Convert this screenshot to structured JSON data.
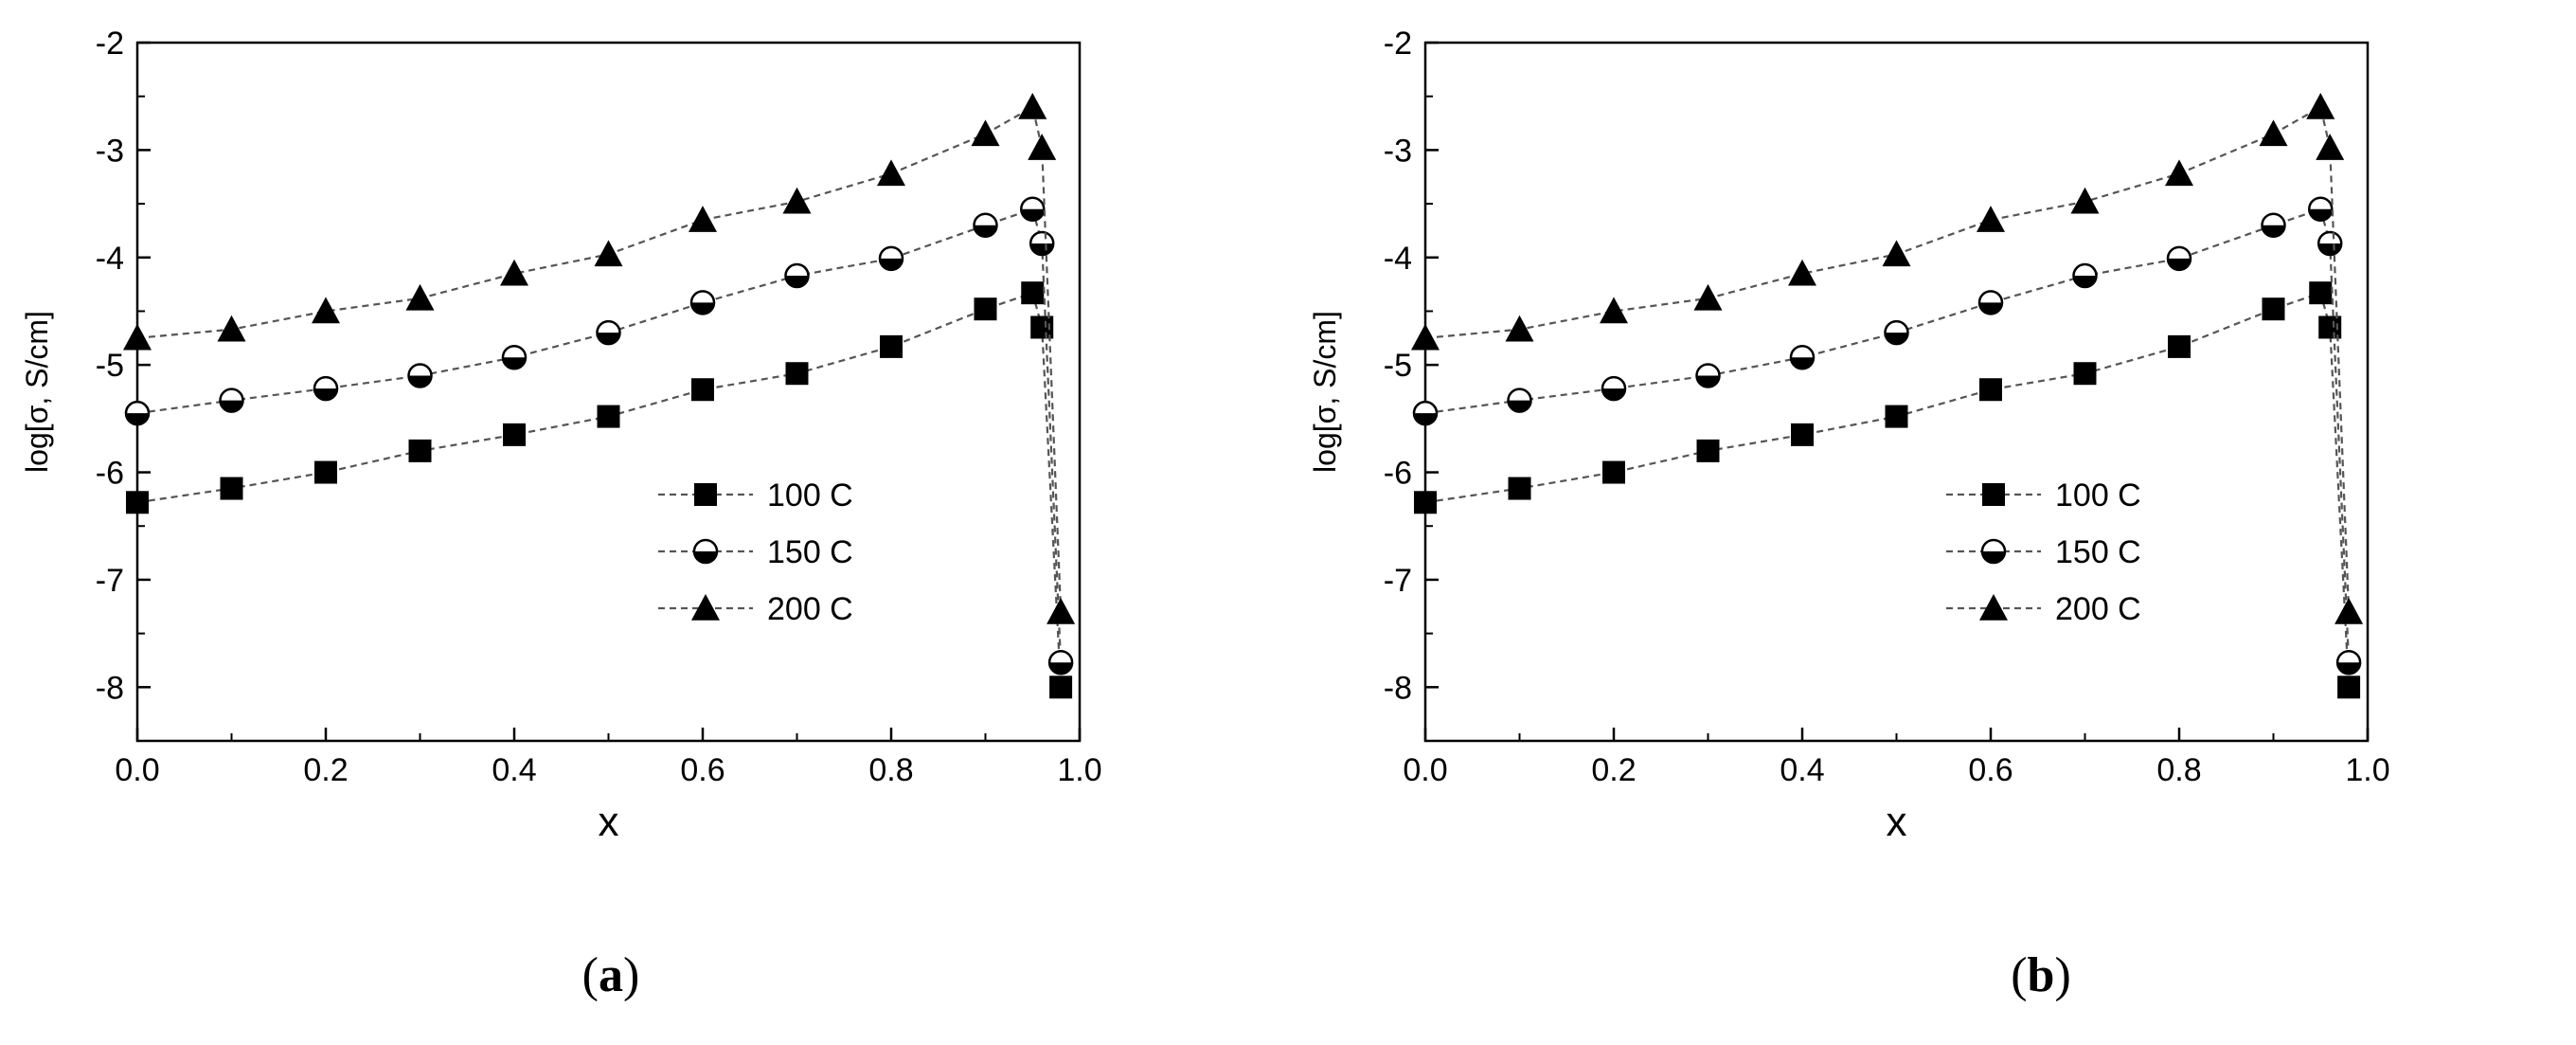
{
  "figure": {
    "captions": [
      "a",
      "b"
    ]
  },
  "chart_data": [
    {
      "panel": "a",
      "type": "line",
      "title": "",
      "xlabel": "x",
      "ylabel": "log[σ, S/cm]",
      "xlim": [
        0.0,
        1.0
      ],
      "ylim": [
        -8.5,
        -2.0
      ],
      "xticks": [
        "0.0",
        "0.2",
        "0.4",
        "0.6",
        "0.8",
        "1.0"
      ],
      "yticks": [
        "-2",
        "-3",
        "-4",
        "-5",
        "-6",
        "-7",
        "-8"
      ],
      "grid": false,
      "legend_position": "center-right",
      "x": [
        0.0,
        0.1,
        0.2,
        0.3,
        0.4,
        0.5,
        0.6,
        0.7,
        0.8,
        0.9,
        0.95,
        0.96,
        0.98
      ],
      "series": [
        {
          "name": "100 C",
          "marker": "square",
          "values": [
            -6.28,
            -6.15,
            -6.0,
            -5.8,
            -5.65,
            -5.48,
            -5.23,
            -5.08,
            -4.83,
            -4.48,
            -4.33,
            -4.65,
            -8.0
          ]
        },
        {
          "name": "150 C",
          "marker": "half-circle",
          "values": [
            -5.45,
            -5.33,
            -5.22,
            -5.1,
            -4.93,
            -4.7,
            -4.42,
            -4.17,
            -4.01,
            -3.7,
            -3.55,
            -3.87,
            -7.77
          ]
        },
        {
          "name": "200 C",
          "marker": "triangle",
          "values": [
            -4.75,
            -4.67,
            -4.5,
            -4.38,
            -4.15,
            -3.97,
            -3.65,
            -3.48,
            -3.22,
            -2.85,
            -2.6,
            -2.98,
            -7.3
          ]
        }
      ]
    },
    {
      "panel": "b",
      "type": "line",
      "title": "",
      "xlabel": "x",
      "ylabel": "log[σ, S/cm]",
      "xlim": [
        0.0,
        1.0
      ],
      "ylim": [
        -8.5,
        -2.0
      ],
      "xticks": [
        "0.0",
        "0.2",
        "0.4",
        "0.6",
        "0.8",
        "1.0"
      ],
      "yticks": [
        "-2",
        "-3",
        "-4",
        "-5",
        "-6",
        "-7",
        "-8"
      ],
      "grid": false,
      "legend_position": "center-right",
      "x": [
        0.0,
        0.1,
        0.2,
        0.3,
        0.4,
        0.5,
        0.6,
        0.7,
        0.8,
        0.9,
        0.95,
        0.96,
        0.98
      ],
      "series": [
        {
          "name": "100 C",
          "marker": "square",
          "values": [
            -6.28,
            -6.15,
            -6.0,
            -5.8,
            -5.65,
            -5.48,
            -5.23,
            -5.08,
            -4.83,
            -4.48,
            -4.33,
            -4.65,
            -8.0
          ]
        },
        {
          "name": "150 C",
          "marker": "half-circle",
          "values": [
            -5.45,
            -5.33,
            -5.22,
            -5.1,
            -4.93,
            -4.7,
            -4.42,
            -4.17,
            -4.01,
            -3.7,
            -3.55,
            -3.87,
            -7.77
          ]
        },
        {
          "name": "200 C",
          "marker": "triangle",
          "values": [
            -4.75,
            -4.67,
            -4.5,
            -4.38,
            -4.15,
            -3.97,
            -3.65,
            -3.48,
            -3.22,
            -2.85,
            -2.6,
            -2.98,
            -7.3
          ]
        }
      ]
    }
  ]
}
